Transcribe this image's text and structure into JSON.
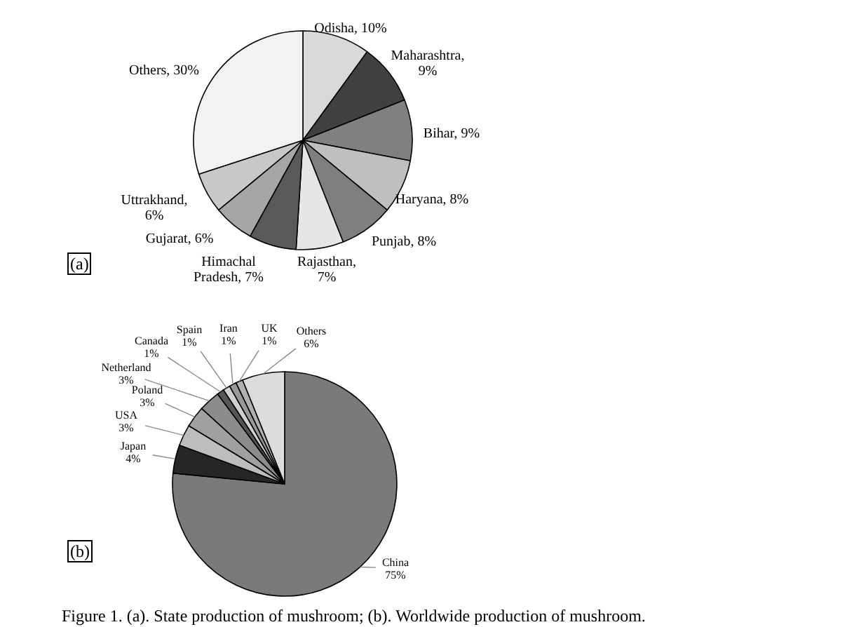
{
  "chart_data": [
    {
      "type": "pie",
      "title": "(a)",
      "categories": [
        "Odisha",
        "Maharashtra",
        "Bihar",
        "Haryana",
        "Punjab",
        "Rajasthan",
        "Himachal Pradesh",
        "Gujarat",
        "Uttrakhand",
        "Others"
      ],
      "values": [
        10,
        9,
        9,
        8,
        8,
        7,
        7,
        6,
        6,
        30
      ],
      "value_labels": [
        ", 10%",
        ", 9%",
        ", 9%",
        ", 8%",
        ", 8%",
        ", 7%",
        ", 7%",
        ", 6%",
        ", 6%",
        ", 30%"
      ],
      "colors": [
        "#d9d9d9",
        "#404040",
        "#808080",
        "#bfbfbf",
        "#7f7f7f",
        "#e6e6e6",
        "#595959",
        "#a6a6a6",
        "#c8c8c8",
        "#f2f2f2"
      ]
    },
    {
      "type": "pie",
      "title": "(b)",
      "categories": [
        "China",
        "Japan",
        "USA",
        "Poland",
        "Netherland",
        "Canada",
        "Spain",
        "Iran",
        "UK",
        "Others"
      ],
      "values": [
        75,
        4,
        3,
        3,
        3,
        1,
        1,
        1,
        1,
        6
      ],
      "value_labels": [
        " 75%",
        " 4%",
        " 3%",
        " 3%",
        " 3%",
        " 1%",
        " 1%",
        " 1%",
        " 1%",
        " 6%"
      ],
      "colors": [
        "#7a7a7a",
        "#262626",
        "#bdbdbd",
        "#a0a0a0",
        "#8c8c8c",
        "#555555",
        "#d0d0d0",
        "#999999",
        "#b0b0b0",
        "#dcdcdc"
      ],
      "annotations": [
        "Figure 1. (a). State production of mushroom; (b). Worldwide production of mushroom."
      ]
    }
  ]
}
